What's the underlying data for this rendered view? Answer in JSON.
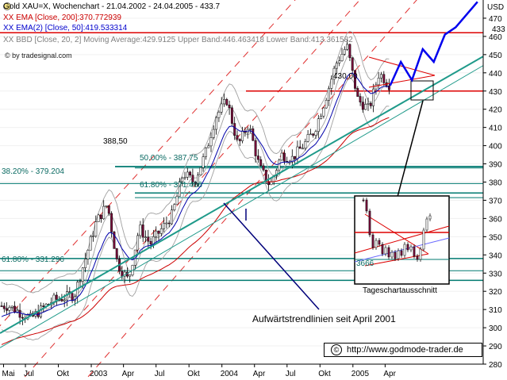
{
  "header": {
    "title": "Gold XAU=X, Wochenchart - 21.04.2002 - 24.04.2005 - 433.7",
    "ema200_label": "XX EMA [Close, 200]:370.772939",
    "ema50_label": "XX EMA(2) [Close, 50]:419.533314",
    "bollinger_label": "XX BBD [Close, 20, 2] Moving Average:429.9125  Upper Band:446.463418  Lower Band:413.361582",
    "watermark": "© by tradesignal.com"
  },
  "colors": {
    "candle_up": "#ffffff",
    "candle_down": "#7a0f3c",
    "ema200": "#cc0000",
    "ema50": "#0000aa",
    "bollinger": "#a0a0a0",
    "trend_line": "#1f9a8a",
    "channel_dashes": "#e03030",
    "forecast": "#0000ee",
    "fib_lines": "#007a70",
    "resistance": "#dd0000"
  },
  "chart_data": {
    "type": "candlestick",
    "title": "Gold XAU=X, Wochenchart - 21.04.2002 - 24.04.2005 - 433.7",
    "ylabel": "USD",
    "ylim": [
      280,
      480
    ],
    "y_ticks": [
      280,
      290,
      300,
      310,
      320,
      330,
      340,
      350,
      360,
      370,
      380,
      390,
      400,
      410,
      420,
      430,
      440,
      450,
      460,
      470
    ],
    "x_labels": [
      "Mai",
      "Jul",
      "Okt",
      "2003",
      "Apr",
      "Jul",
      "Okt",
      "2004",
      "Apr",
      "Jul",
      "Okt",
      "2005",
      "Apr"
    ],
    "last_value_label": "433",
    "close_path": [
      {
        "date": "2002-05",
        "value": 312
      },
      {
        "date": "2002-07",
        "value": 305
      },
      {
        "date": "2002-09",
        "value": 315
      },
      {
        "date": "2002-11",
        "value": 318
      },
      {
        "date": "2003-01",
        "value": 358
      },
      {
        "date": "2003-02",
        "value": 368
      },
      {
        "date": "2003-03",
        "value": 335
      },
      {
        "date": "2003-04",
        "value": 326
      },
      {
        "date": "2003-05",
        "value": 355
      },
      {
        "date": "2003-06",
        "value": 346
      },
      {
        "date": "2003-08",
        "value": 362
      },
      {
        "date": "2003-09",
        "value": 385
      },
      {
        "date": "2003-10",
        "value": 380
      },
      {
        "date": "2003-11",
        "value": 395
      },
      {
        "date": "2003-12",
        "value": 416
      },
      {
        "date": "2004-01",
        "value": 425
      },
      {
        "date": "2004-02",
        "value": 400
      },
      {
        "date": "2004-03",
        "value": 412
      },
      {
        "date": "2004-04",
        "value": 388
      },
      {
        "date": "2004-05",
        "value": 378
      },
      {
        "date": "2004-06",
        "value": 395
      },
      {
        "date": "2004-07",
        "value": 393
      },
      {
        "date": "2004-08",
        "value": 400
      },
      {
        "date": "2004-09",
        "value": 408
      },
      {
        "date": "2004-10",
        "value": 425
      },
      {
        "date": "2004-11",
        "value": 445
      },
      {
        "date": "2004-12",
        "value": 455
      },
      {
        "date": "2005-01",
        "value": 425
      },
      {
        "date": "2005-02",
        "value": 420
      },
      {
        "date": "2005-03",
        "value": 440
      },
      {
        "date": "2005-04",
        "value": 433
      }
    ],
    "horizontal_levels": [
      {
        "label": "430,00",
        "value": 430
      },
      {
        "label": "388,50",
        "value": 388.5
      },
      {
        "label": "50.00% - 387.75",
        "value": 387.75
      },
      {
        "label": "38.20% - 379.204",
        "value": 379.204
      },
      {
        "label": "61.80% - 371.466",
        "value": 371.466
      },
      {
        "label": "61.80% - 331.296",
        "value": 331.296
      }
    ],
    "forecast_path": [
      {
        "date": "2005-04",
        "value": 433
      },
      {
        "date": "2005-05",
        "value": 446
      },
      {
        "date": "2005-06",
        "value": 436
      },
      {
        "date": "2005-07",
        "value": 453
      },
      {
        "date": "2005-08",
        "value": 446
      },
      {
        "date": "2005-09",
        "value": 461
      },
      {
        "date": "2005-10",
        "value": 465
      },
      {
        "date": "2005-12",
        "value": 479
      }
    ],
    "annotations": [
      "Aufwärtstrendlinien seit April 2001",
      "Tageschartausschnitt"
    ],
    "inset": {
      "caption": "Tageschartausschnitt",
      "label": "3666"
    }
  },
  "annotations": {
    "level_430": "430,00",
    "level_388": "388,50",
    "fib_50": "50.00% - 387.75",
    "fib_382": "38.20% - 379.204",
    "fib_618_upper": "61.80% - 371.466",
    "fib_618_lower": "61.80% - 331.296",
    "trend_text": "Aufwärtstrendlinien seit April 2001",
    "inset_caption": "Tageschartausschnitt",
    "inset_label": "3666"
  },
  "footer": {
    "copyright": "http://www.godmode-trader.de",
    "copyright_symbol": "©"
  }
}
